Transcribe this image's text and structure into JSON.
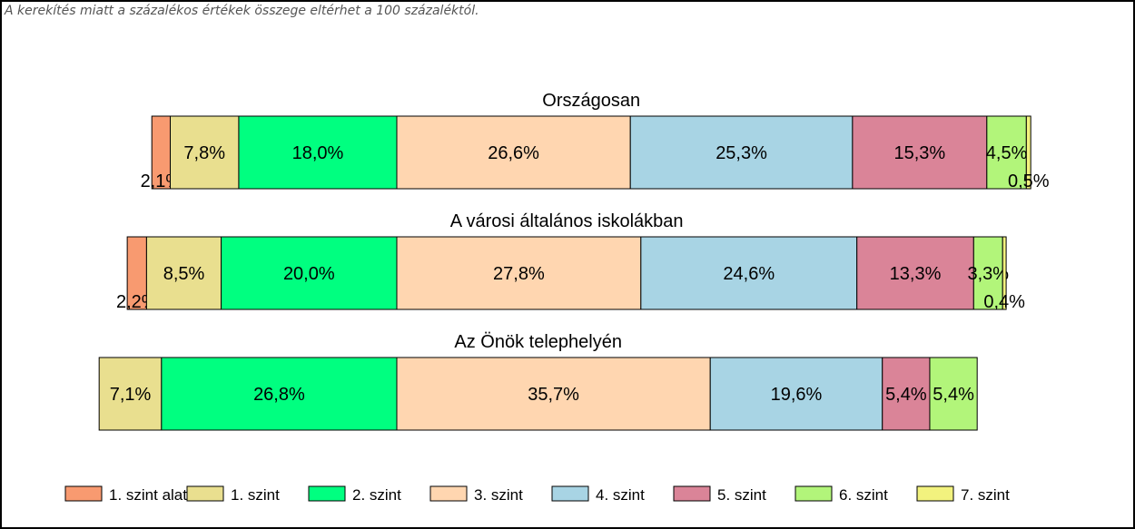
{
  "note": "A kerekítés miatt a  százalékos értékek összege eltérhet a 100 százaléktól.",
  "chart_data": {
    "type": "bar",
    "orientation": "horizontal",
    "stacked": true,
    "grid": false,
    "legend_position": "bottom",
    "categories": [
      "Országosan",
      "A városi általános iskolákban",
      "Az Önök telephelyén"
    ],
    "series": [
      {
        "name": "1. szint alatti",
        "color": "#f89a70",
        "values": [
          2.1,
          2.2,
          0
        ],
        "labels": [
          "2,1%",
          "2,2%",
          ""
        ]
      },
      {
        "name": "1. szint",
        "color": "#e9df8f",
        "values": [
          7.8,
          8.5,
          7.1
        ],
        "labels": [
          "7,8%",
          "8,5%",
          "7,1%"
        ]
      },
      {
        "name": "2. szint",
        "color": "#00ff80",
        "values": [
          18.0,
          20.0,
          26.8
        ],
        "labels": [
          "18,0%",
          "20,0%",
          "26,8%"
        ]
      },
      {
        "name": "3. szint",
        "color": "#ffd6b0",
        "values": [
          26.6,
          27.8,
          35.7
        ],
        "labels": [
          "26,6%",
          "27,8%",
          "35,7%"
        ]
      },
      {
        "name": "4. szint",
        "color": "#a8d4e4",
        "values": [
          25.3,
          24.6,
          19.6
        ],
        "labels": [
          "25,3%",
          "24,6%",
          "19,6%"
        ]
      },
      {
        "name": "5. szint",
        "color": "#da8498",
        "values": [
          15.3,
          13.3,
          5.4
        ],
        "labels": [
          "15,3%",
          "13,3%",
          "5,4%"
        ]
      },
      {
        "name": "6. szint",
        "color": "#b2f57a",
        "values": [
          4.5,
          3.3,
          5.4
        ],
        "labels": [
          "4,5%",
          "3,3%",
          "5,4%"
        ]
      },
      {
        "name": "7. szint",
        "color": "#f2f27e",
        "values": [
          0.5,
          0.4,
          0
        ],
        "labels": [
          "0,5%",
          "0,4%",
          ""
        ]
      }
    ]
  }
}
